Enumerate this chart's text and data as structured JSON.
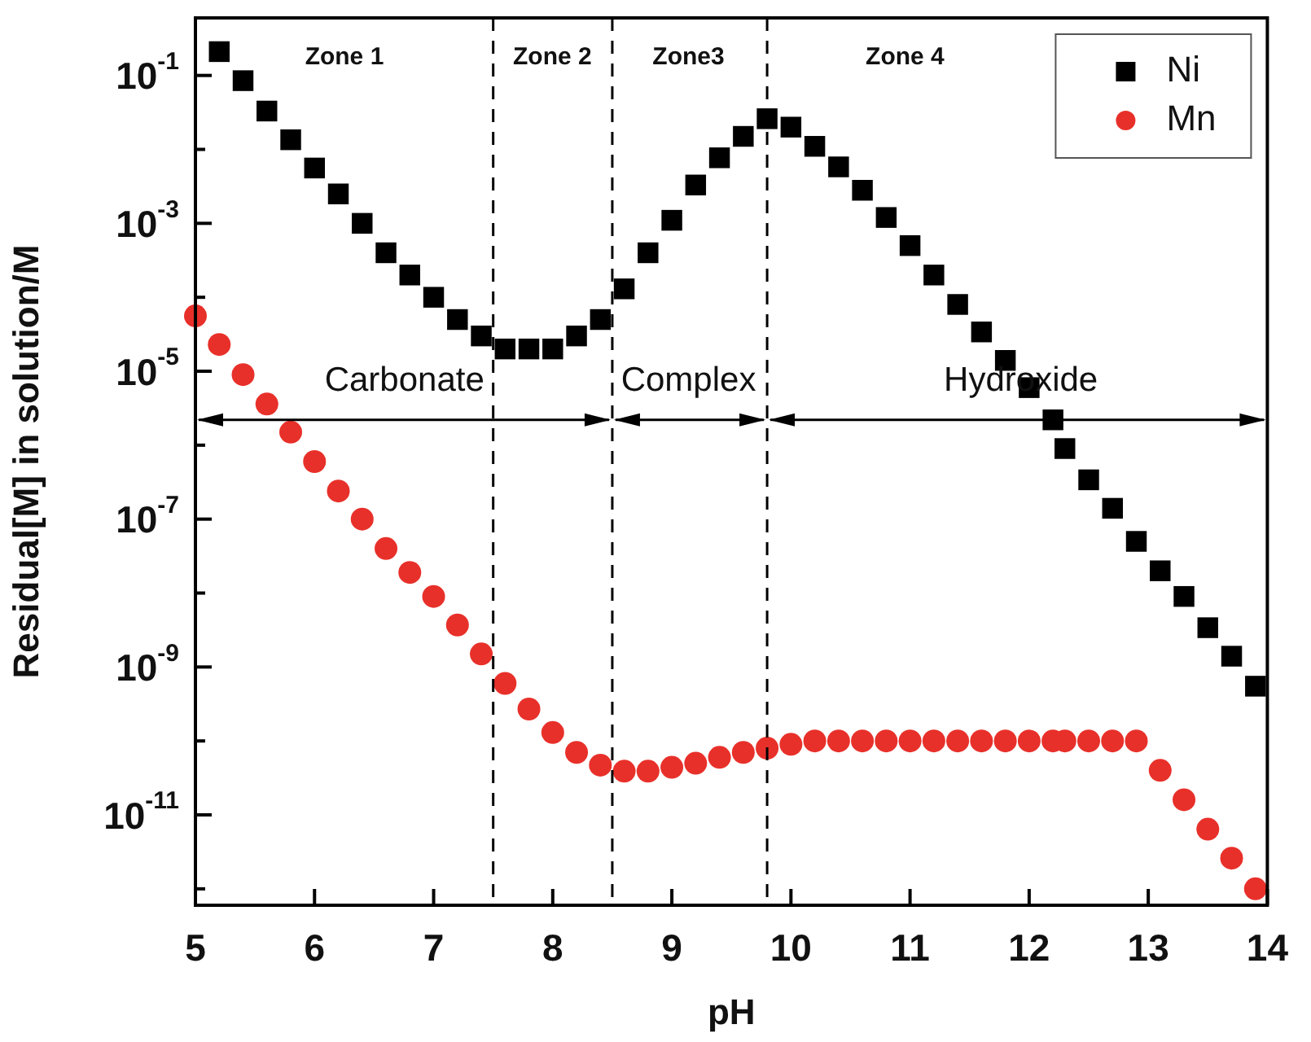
{
  "chart_data": {
    "type": "scatter",
    "xlabel": "pH",
    "ylabel": "Residual[M] in solution/M",
    "log": "y",
    "grid": false,
    "legend": "top right",
    "xlim": [
      5,
      14
    ],
    "xticks": [
      5,
      6,
      7,
      8,
      9,
      10,
      11,
      12,
      13,
      14
    ],
    "ylim": [
      6e-13,
      0.6
    ],
    "yticks": [
      {
        "value": 0.1,
        "label": "10$^{-1}$"
      },
      {
        "value": 0.01,
        "label": null
      },
      {
        "value": 0.001,
        "label": "10$^{-3}$"
      },
      {
        "value": 0.0001,
        "label": null
      },
      {
        "value": 1e-05,
        "label": "10$^{-5}$"
      },
      {
        "value": 1e-06,
        "label": null
      },
      {
        "value": 1e-07,
        "label": "10$^{-7}$"
      },
      {
        "value": 1e-08,
        "label": null
      },
      {
        "value": 1e-09,
        "label": "10$^{-9}$"
      },
      {
        "value": 1e-10,
        "label": null
      },
      {
        "value": 1e-11,
        "label": "10$^{-11}$"
      },
      {
        "value": 1e-12,
        "label": null
      }
    ],
    "series": [
      {
        "name": "Ni",
        "color": "#000000",
        "marker": "square",
        "x": [
          5.2,
          5.4,
          5.6,
          5.8,
          6.0,
          6.2,
          6.4,
          6.6,
          6.8,
          7.0,
          7.2,
          7.4,
          7.6,
          7.8,
          8.0,
          8.2,
          8.4,
          8.6,
          8.8,
          9.0,
          9.2,
          9.4,
          9.6,
          9.8,
          10.0,
          10.2,
          10.4,
          10.6,
          10.8,
          11.0,
          11.2,
          11.4,
          11.6,
          11.8,
          12.0,
          12.2,
          12.3,
          12.5,
          12.7,
          12.9,
          13.1,
          13.3,
          13.5,
          13.7,
          13.9
        ],
        "values": [
          0.21,
          0.085,
          0.033,
          0.0135,
          0.0056,
          0.0025,
          0.001,
          0.0004,
          0.0002,
          0.0001,
          5e-05,
          3e-05,
          2e-05,
          2e-05,
          2e-05,
          3e-05,
          5e-05,
          0.00013,
          0.0004,
          0.0011,
          0.0033,
          0.0077,
          0.015,
          0.026,
          0.02,
          0.011,
          0.0058,
          0.0028,
          0.0012,
          0.0005,
          0.0002,
          8e-05,
          3.4e-05,
          1.4e-05,
          6e-06,
          2.2e-06,
          9e-07,
          3.4e-07,
          1.4e-07,
          5e-08,
          2e-08,
          9e-09,
          3.4e-09,
          1.4e-09,
          5.5e-10
        ]
      },
      {
        "name": "Mn",
        "color": "#e8302a",
        "marker": "circle",
        "x": [
          5.0,
          5.2,
          5.4,
          5.6,
          5.8,
          6.0,
          6.2,
          6.4,
          6.6,
          6.8,
          7.0,
          7.2,
          7.4,
          7.6,
          7.8,
          8.0,
          8.2,
          8.4,
          8.6,
          8.8,
          9.0,
          9.2,
          9.4,
          9.6,
          9.8,
          10.0,
          10.2,
          10.4,
          10.6,
          10.8,
          11.0,
          11.2,
          11.4,
          11.6,
          11.8,
          12.0,
          12.2,
          12.3,
          12.5,
          12.7,
          12.9,
          13.1,
          13.3,
          13.5,
          13.7,
          13.9
        ],
        "values": [
          5.6e-05,
          2.3e-05,
          9e-06,
          3.6e-06,
          1.5e-06,
          6e-07,
          2.4e-07,
          1e-07,
          4e-08,
          1.9e-08,
          9e-09,
          3.7e-09,
          1.5e-09,
          6e-10,
          2.7e-10,
          1.3e-10,
          7e-11,
          4.7e-11,
          3.9e-11,
          3.9e-11,
          4.4e-11,
          5e-11,
          6e-11,
          7e-11,
          8e-11,
          9e-11,
          1e-10,
          1e-10,
          1e-10,
          1e-10,
          1e-10,
          1e-10,
          1e-10,
          1e-10,
          1e-10,
          1e-10,
          1e-10,
          1e-10,
          1e-10,
          1e-10,
          1e-10,
          4e-11,
          1.6e-11,
          6.4e-12,
          2.6e-12,
          1e-12
        ]
      }
    ],
    "ref_lines": [
      {
        "axis": "x",
        "value": 7.5,
        "line_style": "dashed",
        "color": "#000000"
      },
      {
        "axis": "x",
        "value": 8.5,
        "line_style": "dashed",
        "color": "#000000"
      },
      {
        "axis": "x",
        "value": 9.8,
        "line_style": "dashed",
        "color": "#000000"
      }
    ],
    "annotations": [
      "Zone 1",
      "Zone 2",
      "Zone3",
      "Zone 4",
      "Carbonate",
      "Complex",
      "Hydroxide"
    ]
  }
}
